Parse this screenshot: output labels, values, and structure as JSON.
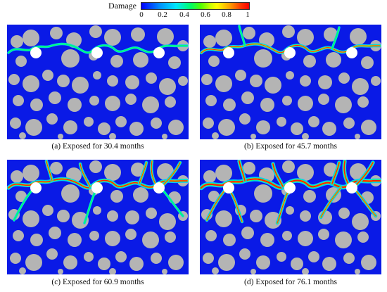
{
  "legend": {
    "title": "Damage",
    "ticks": [
      "0",
      "0.2",
      "0.4",
      "0.6",
      "0.8",
      "1"
    ]
  },
  "colors": {
    "matrix": "#0a1ae6",
    "aggregate": "#b4b4b4",
    "hole": "#ffffff"
  },
  "panels": [
    {
      "caption": "(a) Exposed for 30.4 months",
      "exposure_months": 30.4
    },
    {
      "caption": "(b) Exposed for 45.7 months",
      "exposure_months": 45.7
    },
    {
      "caption": "(c) Exposed for 60.9 months",
      "exposure_months": 60.9
    },
    {
      "caption": "(d) Exposed for 76.1 months",
      "exposure_months": 76.1
    }
  ]
}
